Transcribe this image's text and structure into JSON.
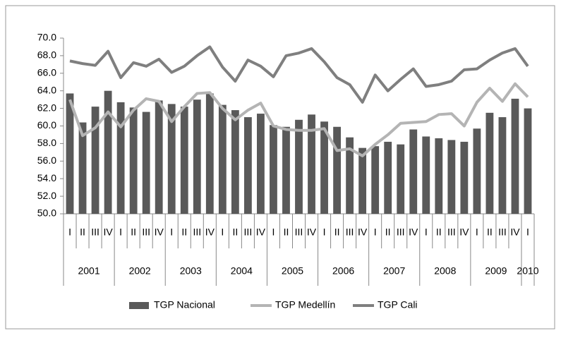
{
  "chart_data": {
    "type": "bar",
    "categories": [
      "I",
      "II",
      "III",
      "IV",
      "I",
      "II",
      "III",
      "IV",
      "I",
      "II",
      "III",
      "IV",
      "I",
      "II",
      "III",
      "IV",
      "I",
      "II",
      "III",
      "IV",
      "I",
      "II",
      "III",
      "IV",
      "I",
      "II",
      "III",
      "IV",
      "I",
      "II",
      "III",
      "IV",
      "I",
      "II",
      "III",
      "IV",
      "I"
    ],
    "years": [
      "2001",
      "2002",
      "2003",
      "2004",
      "2005",
      "2006",
      "2007",
      "2008",
      "2009",
      "2010"
    ],
    "series": [
      {
        "name": "TGP Nacional",
        "type": "bar",
        "color": "#595959",
        "values": [
          63.7,
          60.4,
          62.2,
          64.0,
          62.7,
          62.1,
          61.6,
          62.9,
          62.5,
          62.2,
          63.0,
          63.7,
          62.4,
          61.8,
          61.0,
          61.4,
          60.1,
          59.9,
          60.7,
          61.3,
          60.5,
          59.9,
          58.7,
          57.5,
          57.7,
          58.2,
          57.9,
          59.6,
          58.8,
          58.6,
          58.4,
          58.2,
          59.7,
          61.5,
          61.0,
          63.1,
          62.0
        ]
      },
      {
        "name": "TGP Medellín",
        "type": "line",
        "color": "#b4b4b4",
        "values": [
          63.0,
          58.9,
          59.8,
          61.6,
          59.9,
          61.8,
          63.1,
          62.8,
          60.5,
          62.2,
          63.7,
          63.8,
          62.0,
          60.7,
          61.8,
          62.6,
          60.0,
          59.6,
          59.5,
          59.5,
          59.7,
          57.2,
          57.4,
          56.6,
          57.9,
          59.0,
          60.3,
          60.4,
          60.5,
          61.3,
          61.4,
          60.0,
          62.7,
          64.3,
          62.8,
          64.8,
          63.3
        ]
      },
      {
        "name": "TGP Cali",
        "type": "line",
        "color": "#7f7f7f",
        "values": [
          67.4,
          67.1,
          66.9,
          68.5,
          65.5,
          67.2,
          66.8,
          67.6,
          66.1,
          66.8,
          68.0,
          69.0,
          66.7,
          65.1,
          67.5,
          66.8,
          65.6,
          68.0,
          68.3,
          68.8,
          67.3,
          65.5,
          64.7,
          62.7,
          65.8,
          64.0,
          65.3,
          66.5,
          64.5,
          64.7,
          65.1,
          66.4,
          66.5,
          67.5,
          68.3,
          68.8,
          66.8
        ]
      }
    ],
    "ylim": [
      50,
      70
    ],
    "yticks": [
      {
        "value": 50,
        "label": "50.0"
      },
      {
        "value": 52,
        "label": "52.0"
      },
      {
        "value": 54,
        "label": "54.0"
      },
      {
        "value": 56,
        "label": "56.0"
      },
      {
        "value": 58,
        "label": "58.0"
      },
      {
        "value": 60,
        "label": "60.0"
      },
      {
        "value": 62,
        "label": "62.0"
      },
      {
        "value": 64,
        "label": "64.0"
      },
      {
        "value": 66,
        "label": "66.0"
      },
      {
        "value": 68,
        "label": "68.0"
      },
      {
        "value": 70,
        "label": "70.0"
      }
    ],
    "grid": false,
    "legend": "bottom"
  }
}
